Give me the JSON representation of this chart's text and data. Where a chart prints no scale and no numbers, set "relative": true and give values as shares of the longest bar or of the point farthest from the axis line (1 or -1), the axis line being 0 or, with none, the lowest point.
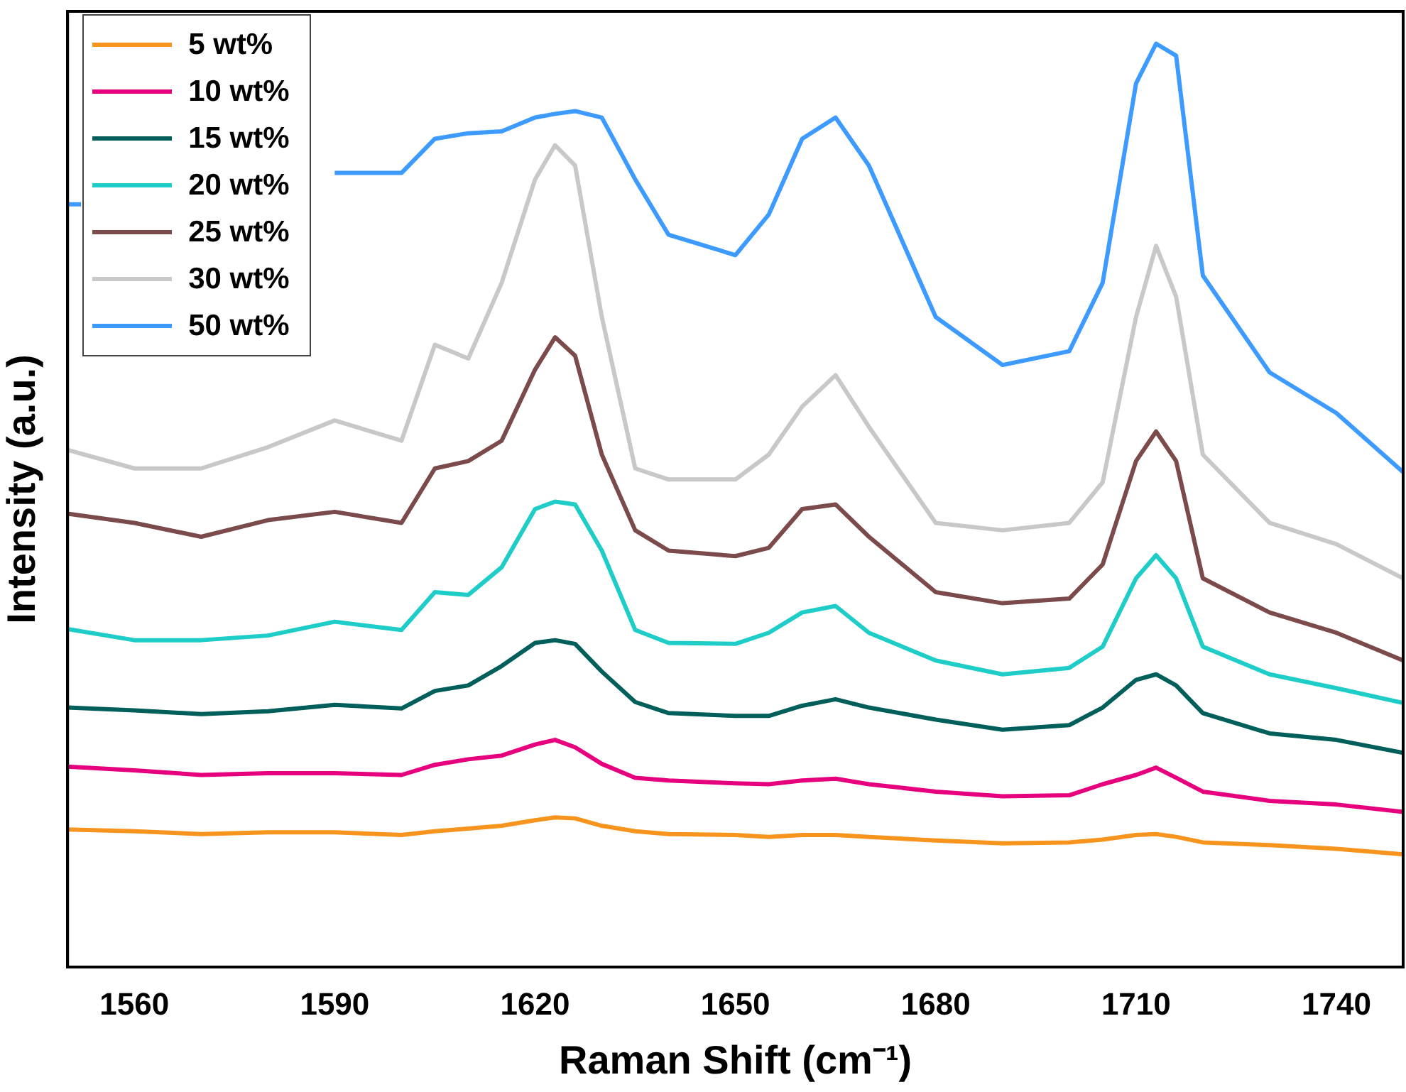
{
  "chart_data": {
    "type": "line",
    "xlabel": "Raman Shift (cm⁻¹)",
    "ylabel": "Intensity (a.u.)",
    "relative": true,
    "xlim": [
      1550,
      1750
    ],
    "xticks": [
      1560,
      1590,
      1620,
      1650,
      1680,
      1710,
      1740
    ],
    "grid": false,
    "legend": "top left",
    "marker": "none",
    "line_style": "solid",
    "x": [
      1550,
      1560,
      1570,
      1580,
      1590,
      1600,
      1605,
      1610,
      1615,
      1620,
      1623,
      1626,
      1630,
      1635,
      1640,
      1650,
      1655,
      1660,
      1665,
      1670,
      1680,
      1690,
      1700,
      1705,
      1710,
      1713,
      1716,
      1720,
      1730,
      1740,
      1750
    ],
    "series": [
      {
        "name": "5 wt%",
        "color": "#f7941d",
        "values": [
          0.149,
          0.147,
          0.144,
          0.146,
          0.146,
          0.143,
          0.147,
          0.15,
          0.153,
          0.159,
          0.162,
          0.161,
          0.153,
          0.147,
          0.144,
          0.143,
          0.141,
          0.143,
          0.143,
          0.141,
          0.137,
          0.134,
          0.135,
          0.138,
          0.143,
          0.144,
          0.141,
          0.135,
          0.132,
          0.128,
          0.122
        ]
      },
      {
        "name": "10 wt%",
        "color": "#e6007e",
        "values": [
          0.217,
          0.213,
          0.208,
          0.21,
          0.21,
          0.208,
          0.219,
          0.225,
          0.229,
          0.241,
          0.246,
          0.238,
          0.22,
          0.205,
          0.202,
          0.199,
          0.198,
          0.202,
          0.204,
          0.198,
          0.19,
          0.185,
          0.186,
          0.198,
          0.208,
          0.216,
          0.205,
          0.19,
          0.18,
          0.176,
          0.168
        ]
      },
      {
        "name": "15 wt%",
        "color": "#005f5a",
        "values": [
          0.281,
          0.278,
          0.274,
          0.277,
          0.284,
          0.28,
          0.299,
          0.305,
          0.326,
          0.351,
          0.354,
          0.35,
          0.32,
          0.287,
          0.275,
          0.272,
          0.272,
          0.283,
          0.29,
          0.281,
          0.268,
          0.257,
          0.262,
          0.281,
          0.311,
          0.317,
          0.305,
          0.275,
          0.253,
          0.246,
          0.232
        ]
      },
      {
        "name": "20 wt%",
        "color": "#1ecdc8",
        "values": [
          0.366,
          0.354,
          0.354,
          0.359,
          0.374,
          0.365,
          0.406,
          0.403,
          0.433,
          0.496,
          0.504,
          0.501,
          0.451,
          0.365,
          0.351,
          0.35,
          0.362,
          0.384,
          0.391,
          0.362,
          0.332,
          0.317,
          0.324,
          0.347,
          0.421,
          0.446,
          0.421,
          0.347,
          0.317,
          0.302,
          0.286
        ]
      },
      {
        "name": "25 wt%",
        "color": "#7b4a4a",
        "values": [
          0.491,
          0.481,
          0.466,
          0.484,
          0.493,
          0.481,
          0.54,
          0.548,
          0.57,
          0.647,
          0.682,
          0.662,
          0.555,
          0.473,
          0.451,
          0.445,
          0.454,
          0.496,
          0.501,
          0.466,
          0.406,
          0.394,
          0.399,
          0.436,
          0.548,
          0.58,
          0.548,
          0.421,
          0.384,
          0.362,
          0.332
        ]
      },
      {
        "name": "30 wt%",
        "color": "#c8c8c8",
        "values": [
          0.56,
          0.54,
          0.54,
          0.563,
          0.592,
          0.57,
          0.674,
          0.659,
          0.741,
          0.853,
          0.89,
          0.868,
          0.704,
          0.54,
          0.528,
          0.528,
          0.555,
          0.607,
          0.641,
          0.585,
          0.481,
          0.473,
          0.481,
          0.525,
          0.704,
          0.781,
          0.726,
          0.555,
          0.481,
          0.458,
          0.421
        ]
      },
      {
        "name": "50 wt%",
        "color": "#3d9bff",
        "x": [
          1550,
          1552,
          1560,
          1570,
          1580,
          1590,
          1600,
          1605,
          1610,
          1615,
          1620,
          1623,
          1626,
          1630,
          1635,
          1640,
          1650,
          1655,
          1660,
          1665,
          1670,
          1680,
          1690,
          1700,
          1705,
          1710,
          1713,
          1716,
          1720,
          1730,
          1740,
          1750
        ],
        "values": [
          0.826,
          0.826,
          null,
          null,
          null,
          0.86,
          0.86,
          0.897,
          0.903,
          0.905,
          0.92,
          0.924,
          0.927,
          0.92,
          0.853,
          0.793,
          0.771,
          0.815,
          0.897,
          0.92,
          0.868,
          0.704,
          0.652,
          0.667,
          0.741,
          0.957,
          1,
          0.987,
          0.749,
          0.644,
          0.6,
          0.536
        ]
      }
    ]
  }
}
